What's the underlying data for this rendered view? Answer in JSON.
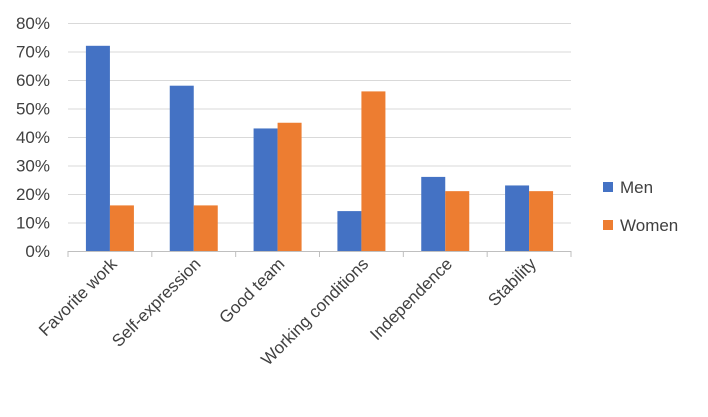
{
  "chart_data": {
    "type": "bar",
    "categories": [
      "Favorite work",
      "Self-expression",
      "Good team",
      "Working conditions",
      "Independence",
      "Stability"
    ],
    "series": [
      {
        "name": "Men",
        "values": [
          72,
          58,
          43,
          14,
          26,
          23
        ],
        "color": "#4472C4"
      },
      {
        "name": "Women",
        "values": [
          16,
          16,
          45,
          56,
          21,
          21
        ],
        "color": "#ED7D31"
      }
    ],
    "y_ticks": [
      "0%",
      "10%",
      "20%",
      "30%",
      "40%",
      "50%",
      "60%",
      "70%",
      "80%"
    ],
    "ylim": [
      0,
      80
    ],
    "y_unit": "%",
    "grid": true,
    "legend_position": "right",
    "title": "",
    "xlabel": "",
    "ylabel": ""
  }
}
